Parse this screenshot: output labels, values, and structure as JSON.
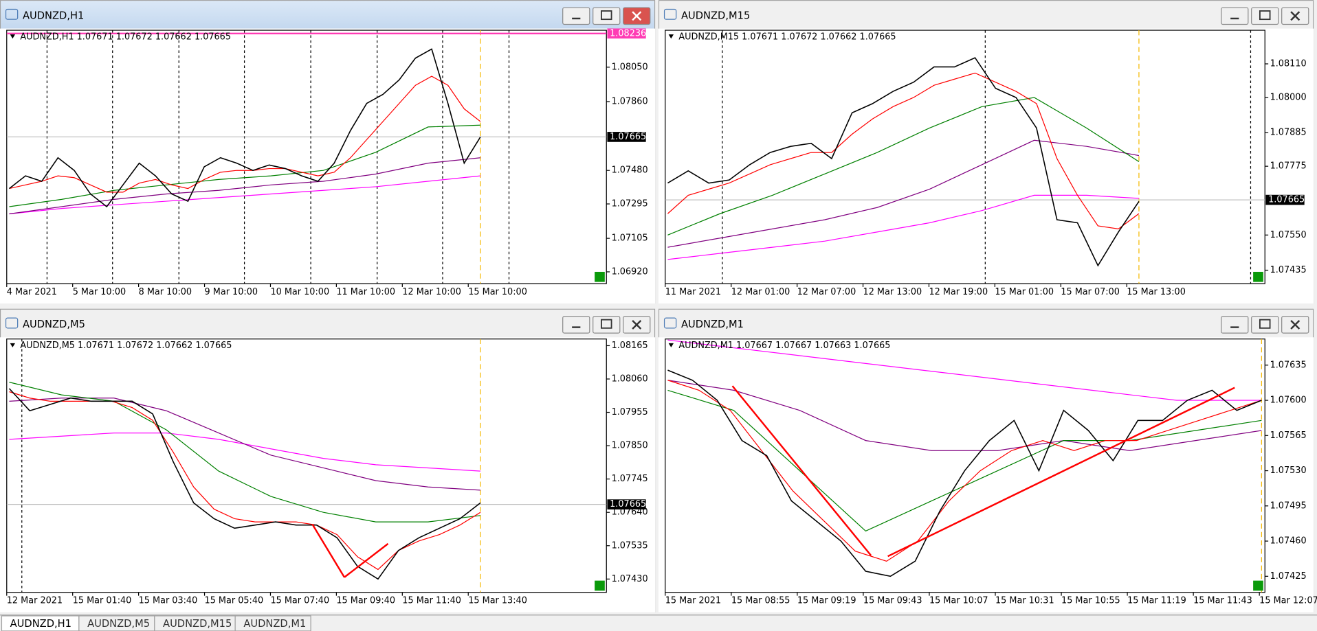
{
  "windows": [
    {
      "title": "AUDNZD,H1",
      "active": true,
      "info": "AUDNZD,H1  1.07671 1.07672 1.07662 1.07665",
      "ylim": [
        1.06855,
        1.08254
      ],
      "yticks": [
        {
          "value": 1.0805,
          "label": "1.08050"
        },
        {
          "value": 1.0786,
          "label": "1.07860"
        },
        {
          "value": 1.0748,
          "label": "1.07480"
        },
        {
          "value": 1.07295,
          "label": "1.07295"
        },
        {
          "value": 1.07105,
          "label": "1.07105"
        },
        {
          "value": 1.0692,
          "label": "1.06920"
        }
      ],
      "current": {
        "value": 1.07665,
        "label": "1.07665"
      },
      "top_line": {
        "value": 1.08236,
        "label": "1.08236"
      },
      "time_labels": [
        "4 Mar 2021",
        "5 Mar 10:00",
        "8 Mar 10:00",
        "9 Mar 10:00",
        "10 Mar 10:00",
        "11 Mar 10:00",
        "12 Mar 10:00",
        "15 Mar 10:00"
      ],
      "series": [
        {
          "color": "#ff00ff",
          "values": [
            1.0724,
            1.0727,
            1.0729,
            1.0731,
            1.0733,
            1.0735,
            1.0737,
            1.0739,
            1.0742,
            1.0745
          ]
        },
        {
          "color": "#800080",
          "values": [
            1.0724,
            1.0728,
            1.0732,
            1.0735,
            1.0737,
            1.074,
            1.0742,
            1.0746,
            1.0752,
            1.0755
          ]
        },
        {
          "color": "#008000",
          "values": [
            1.0728,
            1.0732,
            1.0737,
            1.074,
            1.0743,
            1.0745,
            1.0748,
            1.0758,
            1.0772,
            1.0773
          ]
        },
        {
          "color": "#ff0000",
          "values": [
            1.0738,
            1.074,
            1.0742,
            1.0745,
            1.0744,
            1.074,
            1.0736,
            1.0736,
            1.0741,
            1.0743,
            1.074,
            1.0738,
            1.0743,
            1.0747,
            1.0748,
            1.0748,
            1.0749,
            1.0749,
            1.0747,
            1.0745,
            1.0747,
            1.0755,
            1.0765,
            1.0775,
            1.0785,
            1.0795,
            1.08,
            1.0795,
            1.0782,
            1.0775
          ]
        },
        {
          "color": "#000000",
          "values": [
            1.0738,
            1.0745,
            1.0742,
            1.0755,
            1.0748,
            1.0735,
            1.0728,
            1.074,
            1.0752,
            1.0745,
            1.0735,
            1.0731,
            1.075,
            1.0755,
            1.0752,
            1.0748,
            1.0751,
            1.0749,
            1.0745,
            1.0742,
            1.0752,
            1.077,
            1.0785,
            1.079,
            1.0798,
            1.081,
            1.0815,
            1.0785,
            1.0752,
            1.07665
          ]
        }
      ]
    },
    {
      "title": "AUDNZD,M15",
      "active": false,
      "info": "AUDNZD,M15  1.07671 1.07672 1.07662 1.07665",
      "ylim": [
        1.07391,
        1.0822
      ],
      "yticks": [
        {
          "value": 1.0811,
          "label": "1.08110"
        },
        {
          "value": 1.08,
          "label": "1.08000"
        },
        {
          "value": 1.07885,
          "label": "1.07885"
        },
        {
          "value": 1.07775,
          "label": "1.07775"
        },
        {
          "value": 1.0755,
          "label": "1.07550"
        },
        {
          "value": 1.07435,
          "label": "1.07435"
        }
      ],
      "current": {
        "value": 1.07665,
        "label": "1.07665"
      },
      "time_labels": [
        "11 Mar 2021",
        "12 Mar 01:00",
        "12 Mar 07:00",
        "12 Mar 13:00",
        "12 Mar 19:00",
        "15 Mar 01:00",
        "15 Mar 07:00",
        "15 Mar 13:00"
      ],
      "series": [
        {
          "color": "#ff00ff",
          "values": [
            1.0747,
            1.0749,
            1.0751,
            1.0753,
            1.0756,
            1.0759,
            1.0763,
            1.0768,
            1.0768,
            1.0767
          ]
        },
        {
          "color": "#800080",
          "values": [
            1.0751,
            1.0754,
            1.0757,
            1.076,
            1.0764,
            1.077,
            1.0778,
            1.0786,
            1.0784,
            1.0781
          ]
        },
        {
          "color": "#008000",
          "values": [
            1.0755,
            1.0762,
            1.0768,
            1.0775,
            1.0782,
            1.079,
            1.0797,
            1.08,
            1.079,
            1.0779
          ]
        },
        {
          "color": "#ff0000",
          "values": [
            1.0762,
            1.0768,
            1.077,
            1.0772,
            1.0775,
            1.0778,
            1.078,
            1.0782,
            1.0782,
            1.0788,
            1.0793,
            1.0797,
            1.08,
            1.0804,
            1.0806,
            1.0808,
            1.0805,
            1.0802,
            1.0798,
            1.078,
            1.0768,
            1.0758,
            1.0757,
            1.0762
          ]
        },
        {
          "color": "#000000",
          "values": [
            1.0772,
            1.0776,
            1.0772,
            1.0773,
            1.0778,
            1.0782,
            1.0784,
            1.0785,
            1.078,
            1.0795,
            1.0798,
            1.0802,
            1.0805,
            1.081,
            1.081,
            1.0813,
            1.0803,
            1.08,
            1.079,
            1.076,
            1.0759,
            1.0745,
            1.0756,
            1.0766
          ]
        }
      ]
    },
    {
      "title": "AUDNZD,M5",
      "active": false,
      "info": "AUDNZD,M5  1.07671 1.07672 1.07662 1.07665",
      "ylim": [
        1.07388,
        1.08186
      ],
      "yticks": [
        {
          "value": 1.08165,
          "label": "1.08165"
        },
        {
          "value": 1.0806,
          "label": "1.08060"
        },
        {
          "value": 1.07955,
          "label": "1.07955"
        },
        {
          "value": 1.0785,
          "label": "1.07850"
        },
        {
          "value": 1.07745,
          "label": "1.07745"
        },
        {
          "value": 1.0764,
          "label": "1.07640"
        },
        {
          "value": 1.07535,
          "label": "1.07535"
        },
        {
          "value": 1.0743,
          "label": "1.07430"
        }
      ],
      "current": {
        "value": 1.07665,
        "label": "1.07665"
      },
      "time_labels": [
        "12 Mar 2021",
        "15 Mar 01:40",
        "15 Mar 03:40",
        "15 Mar 05:40",
        "15 Mar 07:40",
        "15 Mar 09:40",
        "15 Mar 11:40",
        "15 Mar 13:40"
      ],
      "series": [
        {
          "color": "#ff00ff",
          "values": [
            1.0787,
            1.0788,
            1.0789,
            1.0789,
            1.0787,
            1.0784,
            1.0781,
            1.0779,
            1.0778,
            1.0777
          ]
        },
        {
          "color": "#800080",
          "values": [
            1.0799,
            1.08,
            1.08,
            1.0796,
            1.0789,
            1.0782,
            1.0778,
            1.0774,
            1.0772,
            1.0771
          ]
        },
        {
          "color": "#008000",
          "values": [
            1.0805,
            1.0801,
            1.0799,
            1.079,
            1.0777,
            1.0769,
            1.0764,
            1.0761,
            1.0761,
            1.0763
          ]
        },
        {
          "color": "#ff0000",
          "values": [
            1.0802,
            1.08,
            1.0799,
            1.0799,
            1.0799,
            1.0799,
            1.0797,
            1.0793,
            1.0783,
            1.0772,
            1.0765,
            1.0762,
            1.0761,
            1.0761,
            1.0761,
            1.076,
            1.0757,
            1.075,
            1.0746,
            1.0752,
            1.0755,
            1.0757,
            1.076,
            1.0764
          ]
        },
        {
          "color": "#000000",
          "values": [
            1.0803,
            1.0796,
            1.0798,
            1.08,
            1.0799,
            1.0799,
            1.0799,
            1.0795,
            1.078,
            1.0767,
            1.0762,
            1.0759,
            1.076,
            1.0761,
            1.076,
            1.076,
            1.0756,
            1.0747,
            1.0743,
            1.0752,
            1.0756,
            1.0759,
            1.0762,
            1.0767
          ]
        }
      ]
    },
    {
      "title": "AUDNZD,M1",
      "active": false,
      "info": "AUDNZD,M1  1.07667 1.07667 1.07663 1.07665",
      "ylim": [
        1.07409,
        1.07661
      ],
      "yticks": [
        {
          "value": 1.07635,
          "label": "1.07635"
        },
        {
          "value": 1.076,
          "label": "1.07600"
        },
        {
          "value": 1.07565,
          "label": "1.07565"
        },
        {
          "value": 1.0753,
          "label": "1.07530"
        },
        {
          "value": 1.07495,
          "label": "1.07495"
        },
        {
          "value": 1.0746,
          "label": "1.07460"
        },
        {
          "value": 1.07425,
          "label": "1.07425"
        }
      ],
      "time_labels": [
        "15 Mar 2021",
        "15 Mar 08:55",
        "15 Mar 09:19",
        "15 Mar 09:43",
        "15 Mar 10:07",
        "15 Mar 10:31",
        "15 Mar 10:55",
        "15 Mar 11:19",
        "15 Mar 11:43",
        "15 Mar 12:07"
      ],
      "series": [
        {
          "color": "#ff00ff",
          "values": [
            1.0766,
            1.0765,
            1.0764,
            1.0763,
            1.0762,
            1.0761,
            1.076,
            1.076
          ]
        },
        {
          "color": "#800080",
          "values": [
            1.0762,
            1.0761,
            1.0759,
            1.0756,
            1.0755,
            1.0755,
            1.0756,
            1.0755,
            1.0756,
            1.0757
          ]
        },
        {
          "color": "#008000",
          "values": [
            1.0761,
            1.0759,
            1.0753,
            1.0747,
            1.075,
            1.0753,
            1.0756,
            1.0756,
            1.0757,
            1.0758
          ]
        },
        {
          "color": "#ff0000",
          "values": [
            1.0762,
            1.0761,
            1.0759,
            1.0755,
            1.0751,
            1.0748,
            1.0745,
            1.0744,
            1.0746,
            1.075,
            1.0753,
            1.0755,
            1.0756,
            1.0755,
            1.0756,
            1.0756,
            1.0757,
            1.0758,
            1.0759,
            1.076
          ]
        },
        {
          "color": "#000000",
          "values": [
            1.0763,
            1.0762,
            1.076,
            1.0756,
            1.07545,
            1.075,
            1.0748,
            1.0746,
            1.0743,
            1.07425,
            1.0744,
            1.0749,
            1.0753,
            1.0756,
            1.0758,
            1.0753,
            1.0759,
            1.0757,
            1.0754,
            1.0758,
            1.0758,
            1.076,
            1.0761,
            1.0759,
            1.076
          ]
        }
      ]
    }
  ],
  "tabs": [
    "AUDNZD,H1",
    "AUDNZD,M5",
    "AUDNZD,M15",
    "AUDNZD,M1"
  ]
}
